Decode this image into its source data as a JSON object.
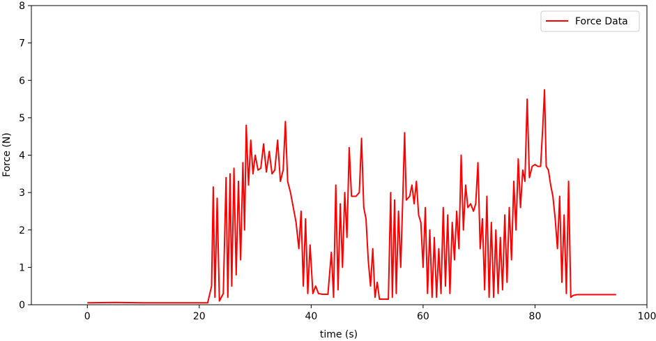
{
  "chart_data": {
    "type": "line",
    "title": "",
    "xlabel": "time (s)",
    "ylabel": "Force (N)",
    "xlim": [
      -10,
      100
    ],
    "ylim": [
      0,
      8
    ],
    "x_ticks": [
      0,
      20,
      40,
      60,
      80,
      100
    ],
    "y_ticks": [
      0,
      1,
      2,
      3,
      4,
      5,
      6,
      7,
      8
    ],
    "grid": false,
    "legend_position": "top-right",
    "series": [
      {
        "name": "Force Data",
        "color": "#ff0000",
        "points": [
          [
            0,
            0.05
          ],
          [
            5,
            0.06
          ],
          [
            10,
            0.05
          ],
          [
            15,
            0.05
          ],
          [
            20,
            0.05
          ],
          [
            21.5,
            0.05
          ],
          [
            22.2,
            0.5
          ],
          [
            22.5,
            3.15
          ],
          [
            22.8,
            0.2
          ],
          [
            23.2,
            2.85
          ],
          [
            23.6,
            0.1
          ],
          [
            24.3,
            0.3
          ],
          [
            24.8,
            3.4
          ],
          [
            25.1,
            0.2
          ],
          [
            25.5,
            3.5
          ],
          [
            25.8,
            0.5
          ],
          [
            26.2,
            3.65
          ],
          [
            26.6,
            0.8
          ],
          [
            27.0,
            3.3
          ],
          [
            27.4,
            1.2
          ],
          [
            27.8,
            3.8
          ],
          [
            28.1,
            2.0
          ],
          [
            28.4,
            4.8
          ],
          [
            28.8,
            3.2
          ],
          [
            29.2,
            4.4
          ],
          [
            29.6,
            3.5
          ],
          [
            30.0,
            4.0
          ],
          [
            30.5,
            3.6
          ],
          [
            31.0,
            3.65
          ],
          [
            31.5,
            4.3
          ],
          [
            32.0,
            3.55
          ],
          [
            32.5,
            4.1
          ],
          [
            33.0,
            3.5
          ],
          [
            33.5,
            3.6
          ],
          [
            34.0,
            4.4
          ],
          [
            34.5,
            3.3
          ],
          [
            35.0,
            3.6
          ],
          [
            35.4,
            4.9
          ],
          [
            35.8,
            3.3
          ],
          [
            36.3,
            3.0
          ],
          [
            36.8,
            2.6
          ],
          [
            37.3,
            2.2
          ],
          [
            37.8,
            1.5
          ],
          [
            38.2,
            2.5
          ],
          [
            38.6,
            0.5
          ],
          [
            39.0,
            2.3
          ],
          [
            39.4,
            0.3
          ],
          [
            39.8,
            1.6
          ],
          [
            40.3,
            0.3
          ],
          [
            40.8,
            0.5
          ],
          [
            41.3,
            0.3
          ],
          [
            42.0,
            0.28
          ],
          [
            43.0,
            0.28
          ],
          [
            43.6,
            1.4
          ],
          [
            44.0,
            0.2
          ],
          [
            44.4,
            3.2
          ],
          [
            44.8,
            0.4
          ],
          [
            45.2,
            2.7
          ],
          [
            45.6,
            1.0
          ],
          [
            46.0,
            3.0
          ],
          [
            46.4,
            1.8
          ],
          [
            46.8,
            4.2
          ],
          [
            47.2,
            2.9
          ],
          [
            48.0,
            2.9
          ],
          [
            48.6,
            3.0
          ],
          [
            49.0,
            4.45
          ],
          [
            49.4,
            2.6
          ],
          [
            49.8,
            2.3
          ],
          [
            50.2,
            1.2
          ],
          [
            50.6,
            0.5
          ],
          [
            51.0,
            1.5
          ],
          [
            51.4,
            0.2
          ],
          [
            51.8,
            0.6
          ],
          [
            52.2,
            0.15
          ],
          [
            53.0,
            0.15
          ],
          [
            53.8,
            0.15
          ],
          [
            54.2,
            3.0
          ],
          [
            54.5,
            0.2
          ],
          [
            54.9,
            2.8
          ],
          [
            55.2,
            0.3
          ],
          [
            55.6,
            2.5
          ],
          [
            56.0,
            1.0
          ],
          [
            56.4,
            3.0
          ],
          [
            56.7,
            4.6
          ],
          [
            57.0,
            2.8
          ],
          [
            57.6,
            2.9
          ],
          [
            58.0,
            3.2
          ],
          [
            58.4,
            2.7
          ],
          [
            58.8,
            3.3
          ],
          [
            59.2,
            2.4
          ],
          [
            59.6,
            2.2
          ],
          [
            60.0,
            1.0
          ],
          [
            60.4,
            2.6
          ],
          [
            60.8,
            0.3
          ],
          [
            61.2,
            2.0
          ],
          [
            61.6,
            0.2
          ],
          [
            62.0,
            1.8
          ],
          [
            62.4,
            0.2
          ],
          [
            62.8,
            1.5
          ],
          [
            63.2,
            0.3
          ],
          [
            63.6,
            2.6
          ],
          [
            64.0,
            0.5
          ],
          [
            64.4,
            2.4
          ],
          [
            64.8,
            0.3
          ],
          [
            65.2,
            2.2
          ],
          [
            65.6,
            1.2
          ],
          [
            66.0,
            2.5
          ],
          [
            66.4,
            1.5
          ],
          [
            66.8,
            4.0
          ],
          [
            67.2,
            2.0
          ],
          [
            67.6,
            3.2
          ],
          [
            68.0,
            2.6
          ],
          [
            68.5,
            2.7
          ],
          [
            69.0,
            2.5
          ],
          [
            69.4,
            2.7
          ],
          [
            69.8,
            3.8
          ],
          [
            70.2,
            1.5
          ],
          [
            70.6,
            2.3
          ],
          [
            71.0,
            0.4
          ],
          [
            71.4,
            2.9
          ],
          [
            71.8,
            0.2
          ],
          [
            72.2,
            2.2
          ],
          [
            72.6,
            0.2
          ],
          [
            73.0,
            2.0
          ],
          [
            73.4,
            0.3
          ],
          [
            73.8,
            1.8
          ],
          [
            74.2,
            0.4
          ],
          [
            74.6,
            2.4
          ],
          [
            75.0,
            0.6
          ],
          [
            75.4,
            2.6
          ],
          [
            75.8,
            1.2
          ],
          [
            76.2,
            3.3
          ],
          [
            76.6,
            2.0
          ],
          [
            77.0,
            3.9
          ],
          [
            77.4,
            2.6
          ],
          [
            77.8,
            3.6
          ],
          [
            78.2,
            3.3
          ],
          [
            78.6,
            5.5
          ],
          [
            79.0,
            3.4
          ],
          [
            79.5,
            3.7
          ],
          [
            80.0,
            3.75
          ],
          [
            80.5,
            3.7
          ],
          [
            81.0,
            3.7
          ],
          [
            81.4,
            4.8
          ],
          [
            81.7,
            5.75
          ],
          [
            82.0,
            3.7
          ],
          [
            82.4,
            3.6
          ],
          [
            82.8,
            3.2
          ],
          [
            83.2,
            2.9
          ],
          [
            83.6,
            2.3
          ],
          [
            84.0,
            1.5
          ],
          [
            84.4,
            2.9
          ],
          [
            84.8,
            0.6
          ],
          [
            85.2,
            2.4
          ],
          [
            85.6,
            0.3
          ],
          [
            86.0,
            3.3
          ],
          [
            86.4,
            0.2
          ],
          [
            86.8,
            0.25
          ],
          [
            87.5,
            0.27
          ],
          [
            90.0,
            0.27
          ],
          [
            94.5,
            0.27
          ]
        ]
      }
    ]
  }
}
